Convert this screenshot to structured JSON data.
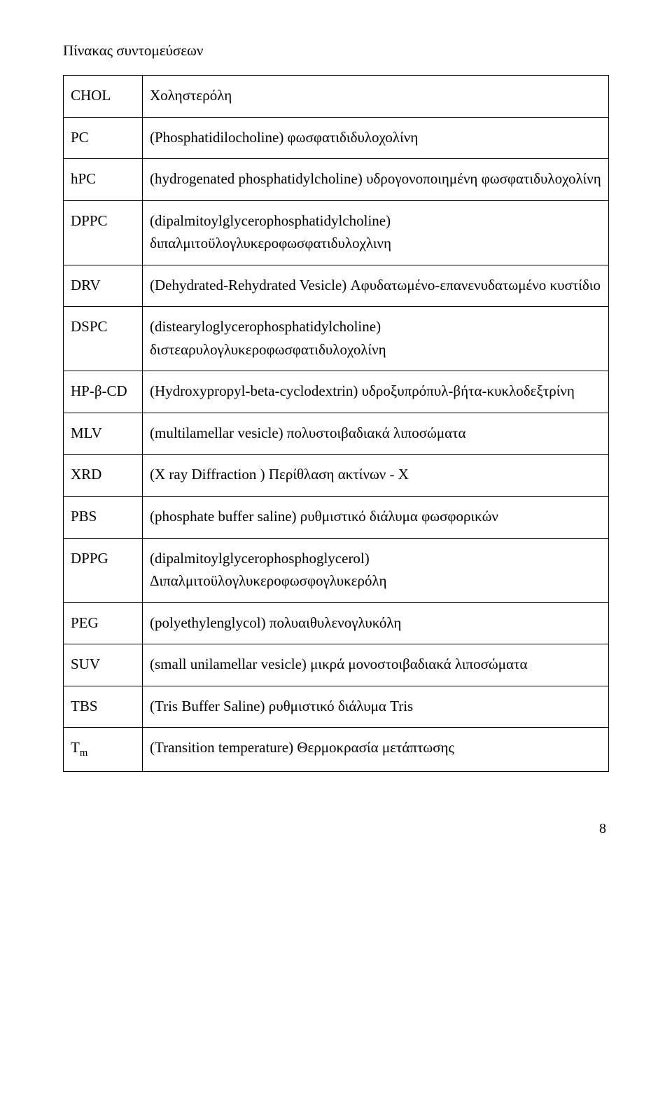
{
  "title": "Πίνακας συντομεύσεων",
  "rows": [
    {
      "abbr": "CHOL",
      "def": "Χοληστερόλη"
    },
    {
      "abbr": "PC",
      "def": "(Phosphatidilocholine) φωσφατιδιδυλοχολίνη"
    },
    {
      "abbr": "hPC",
      "def": "(hydrogenated phosphatidylcholine) υδρογονοποιημένη φωσφατιδυλοχολίνη"
    },
    {
      "abbr": "DPPC",
      "def": "(dipalmitoylglycerophosphatidylcholine) διπαλμιτοϋλογλυκεροφωσφατιδυλοχλινη"
    },
    {
      "abbr": "DRV",
      "def": "(Dehydrated-Rehydrated Vesicle) Αφυδατωμένο-επανενυδατωμένο κυστίδιο"
    },
    {
      "abbr": "DSPC",
      "def": "(distearyloglycerophosphatidylcholine) διστεαρυλογλυκεροφωσφατιδυλοχολίνη"
    },
    {
      "abbr": "HP-β-CD",
      "def": "(Hydroxypropyl-beta-cyclodextrin) υδροξυπρόπυλ-βήτα-κυκλοδεξτρίνη"
    },
    {
      "abbr": "MLV",
      "def": "(multilamellar vesicle) πολυστοιβαδιακά λιποσώματα"
    },
    {
      "abbr": "XRD",
      "def": "(X ray Diffraction ) Περίθλαση ακτίνων - Χ"
    },
    {
      "abbr": "PBS",
      "def": "(phosphate buffer saline) ρυθμιστικό διάλυμα φωσφορικών"
    },
    {
      "abbr": "DPPG",
      "def": "(dipalmitoylglycerophosphoglycerol) Διπαλμιτοϋλογλυκεροφωσφογλυκερόλη"
    },
    {
      "abbr": "PEG",
      "def": "(polyethylenglycol) πολυαιθυλενογλυκόλη"
    },
    {
      "abbr": "SUV",
      "def": "(small unilamellar vesicle) μικρά μονοστοιβαδιακά λιποσώματα"
    },
    {
      "abbr": "TBS",
      "def": "(Tris Buffer Saline) ρυθμιστικό διάλυμα Tris"
    },
    {
      "abbr": "Tm",
      "abbr_html": "T<span class=\"sub\">m</span>",
      "def": "(Transition temperature) Θερμοκρασία μετάπτωσης"
    }
  ],
  "page_number": "8"
}
